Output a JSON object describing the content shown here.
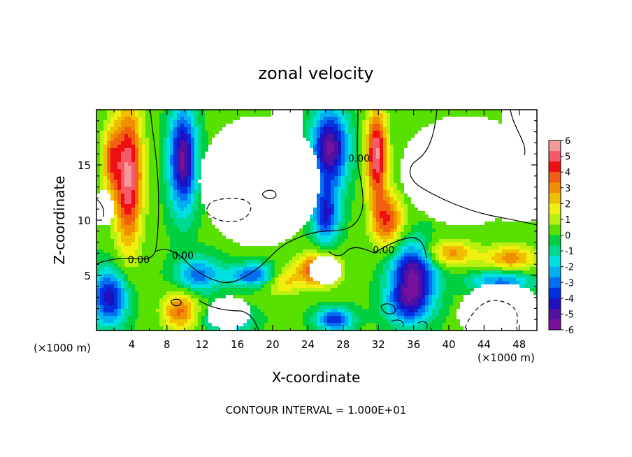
{
  "chart_data": {
    "type": "heatmap",
    "title": "zonal velocity",
    "xlabel": "X-coordinate",
    "ylabel": "Z-coordinate",
    "x_unit_left": "(×1000 m)",
    "x_unit_right": "(×1000 m)",
    "footer": "CONTOUR INTERVAL = 1.000E+01",
    "xlim": [
      0,
      50
    ],
    "ylim": [
      0,
      20
    ],
    "x_ticks": [
      "4",
      "8",
      "12",
      "16",
      "20",
      "24",
      "28",
      "32",
      "36",
      "40",
      "44",
      "48"
    ],
    "y_ticks": [
      "5",
      "10",
      "15"
    ],
    "colorbar": {
      "range": [
        -6,
        6
      ],
      "labels": [
        "6",
        "5",
        "4",
        "3",
        "2",
        "1",
        "0",
        "-1",
        "-2",
        "-3",
        "-4",
        "-5",
        "-6"
      ],
      "colors": [
        "#f59a9a",
        "#f55a6a",
        "#ee1010",
        "#f06010",
        "#f09000",
        "#f0c000",
        "#f0f010",
        "#b8f010",
        "#58e000",
        "#00d040",
        "#00d890",
        "#00e0e0",
        "#00b0f0",
        "#0070f0",
        "#0030e0",
        "#2010c0",
        "#5010a0",
        "#7a10a0"
      ]
    },
    "contour_labels": [
      {
        "text": "0.00",
        "x": 4.8,
        "y": 6.1
      },
      {
        "text": "0.00",
        "x": 9.8,
        "y": 6.5
      },
      {
        "text": "0.00",
        "x": 29.8,
        "y": 15.3
      },
      {
        "text": "0.00",
        "x": 32.6,
        "y": 7.0
      }
    ]
  }
}
